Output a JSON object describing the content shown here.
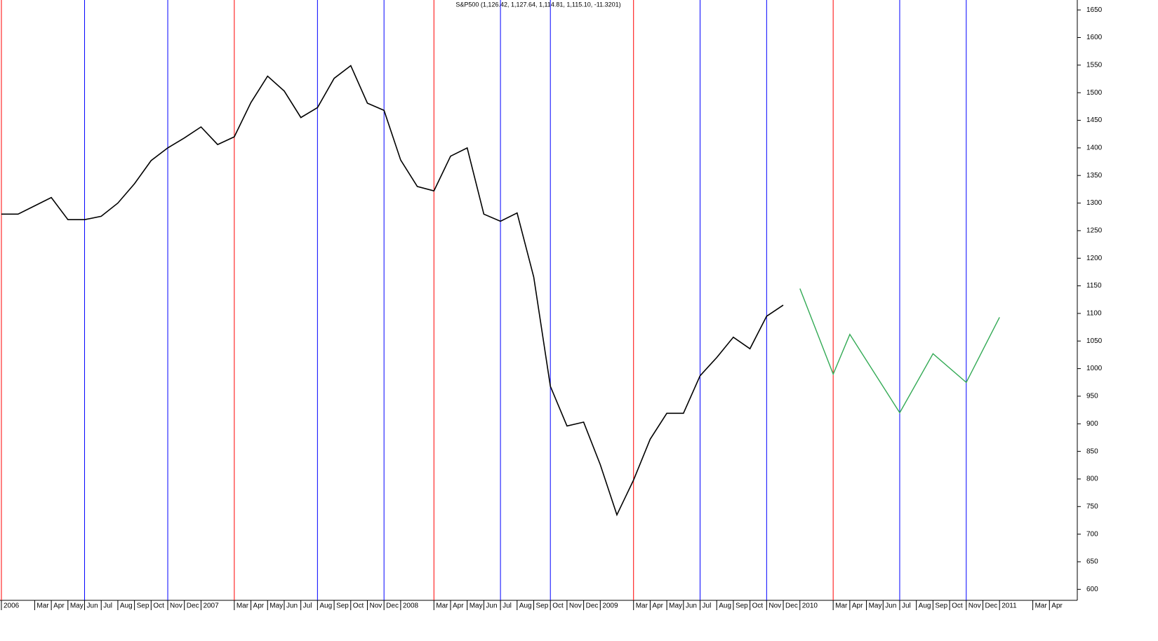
{
  "chart_data": {
    "type": "line",
    "title": "S&P500 (1,126.42, 1,127.64, 1,114.81, 1,115.10, -11.3201)",
    "xlim": [
      "2006-01",
      "2011-05"
    ],
    "ylim": [
      575,
      1668
    ],
    "yticks": [
      600,
      650,
      700,
      750,
      800,
      850,
      900,
      950,
      1000,
      1050,
      1100,
      1150,
      1200,
      1250,
      1300,
      1350,
      1400,
      1450,
      1500,
      1550,
      1600,
      1650
    ],
    "xticks": [
      {
        "value": "2006-01",
        "label": "2006"
      },
      {
        "value": "2006-03",
        "label": "Mar"
      },
      {
        "value": "2006-04",
        "label": "Apr"
      },
      {
        "value": "2006-05",
        "label": "May"
      },
      {
        "value": "2006-06",
        "label": "Jun"
      },
      {
        "value": "2006-07",
        "label": "Jul"
      },
      {
        "value": "2006-08",
        "label": "Aug"
      },
      {
        "value": "2006-09",
        "label": "Sep"
      },
      {
        "value": "2006-10",
        "label": "Oct"
      },
      {
        "value": "2006-11",
        "label": "Nov"
      },
      {
        "value": "2006-12",
        "label": "Dec"
      },
      {
        "value": "2007-01",
        "label": "2007"
      },
      {
        "value": "2007-03",
        "label": "Mar"
      },
      {
        "value": "2007-04",
        "label": "Apr"
      },
      {
        "value": "2007-05",
        "label": "May"
      },
      {
        "value": "2007-06",
        "label": "Jun"
      },
      {
        "value": "2007-07",
        "label": "Jul"
      },
      {
        "value": "2007-08",
        "label": "Aug"
      },
      {
        "value": "2007-09",
        "label": "Sep"
      },
      {
        "value": "2007-10",
        "label": "Oct"
      },
      {
        "value": "2007-11",
        "label": "Nov"
      },
      {
        "value": "2007-12",
        "label": "Dec"
      },
      {
        "value": "2008-01",
        "label": "2008"
      },
      {
        "value": "2008-03",
        "label": "Mar"
      },
      {
        "value": "2008-04",
        "label": "Apr"
      },
      {
        "value": "2008-05",
        "label": "May"
      },
      {
        "value": "2008-06",
        "label": "Jun"
      },
      {
        "value": "2008-07",
        "label": "Jul"
      },
      {
        "value": "2008-08",
        "label": "Aug"
      },
      {
        "value": "2008-09",
        "label": "Sep"
      },
      {
        "value": "2008-10",
        "label": "Oct"
      },
      {
        "value": "2008-11",
        "label": "Nov"
      },
      {
        "value": "2008-12",
        "label": "Dec"
      },
      {
        "value": "2009-01",
        "label": "2009"
      },
      {
        "value": "2009-03",
        "label": "Mar"
      },
      {
        "value": "2009-04",
        "label": "Apr"
      },
      {
        "value": "2009-05",
        "label": "May"
      },
      {
        "value": "2009-06",
        "label": "Jun"
      },
      {
        "value": "2009-07",
        "label": "Jul"
      },
      {
        "value": "2009-08",
        "label": "Aug"
      },
      {
        "value": "2009-09",
        "label": "Sep"
      },
      {
        "value": "2009-10",
        "label": "Oct"
      },
      {
        "value": "2009-11",
        "label": "Nov"
      },
      {
        "value": "2009-12",
        "label": "Dec"
      },
      {
        "value": "2010-01",
        "label": "2010"
      },
      {
        "value": "2010-03",
        "label": "Mar"
      },
      {
        "value": "2010-04",
        "label": "Apr"
      },
      {
        "value": "2010-05",
        "label": "May"
      },
      {
        "value": "2010-06",
        "label": "Jun"
      },
      {
        "value": "2010-07",
        "label": "Jul"
      },
      {
        "value": "2010-08",
        "label": "Aug"
      },
      {
        "value": "2010-09",
        "label": "Sep"
      },
      {
        "value": "2010-10",
        "label": "Oct"
      },
      {
        "value": "2010-11",
        "label": "Nov"
      },
      {
        "value": "2010-12",
        "label": "Dec"
      },
      {
        "value": "2011-01",
        "label": "2011"
      },
      {
        "value": "2011-03",
        "label": "Mar"
      },
      {
        "value": "2011-04",
        "label": "Apr"
      }
    ],
    "series": [
      {
        "color": "#000000",
        "x": [
          "2006-01",
          "2006-02",
          "2006-03",
          "2006-04",
          "2006-05",
          "2006-06",
          "2006-07",
          "2006-08",
          "2006-09",
          "2006-10",
          "2006-11",
          "2006-12",
          "2007-01",
          "2007-02",
          "2007-03",
          "2007-04",
          "2007-05",
          "2007-06",
          "2007-07",
          "2007-08",
          "2007-09",
          "2007-10",
          "2007-11",
          "2007-12",
          "2008-01",
          "2008-02",
          "2008-03",
          "2008-04",
          "2008-05",
          "2008-06",
          "2008-07",
          "2008-08",
          "2008-09",
          "2008-10",
          "2008-11",
          "2008-12",
          "2009-01",
          "2009-02",
          "2009-03",
          "2009-04",
          "2009-05",
          "2009-06",
          "2009-07",
          "2009-08",
          "2009-09",
          "2009-10",
          "2009-11",
          "2009-12"
        ],
        "values": [
          1280,
          1280,
          1295,
          1310,
          1270,
          1270,
          1276,
          1300,
          1335,
          1377,
          1400,
          1418,
          1438,
          1406,
          1420,
          1482,
          1530,
          1503,
          1455,
          1473,
          1526,
          1549,
          1481,
          1468,
          1378,
          1330,
          1322,
          1385,
          1400,
          1280,
          1267,
          1282,
          1166,
          968,
          896,
          903,
          826,
          735,
          798,
          872,
          919,
          919,
          987,
          1020,
          1057,
          1036,
          1095,
          1115
        ]
      },
      {
        "color": "#33aa55",
        "x": [
          "2010-01",
          "2010-03",
          "2010-04",
          "2010-07",
          "2010-09",
          "2010-11",
          "2011-01"
        ],
        "values": [
          1145,
          990,
          1062,
          920,
          1027,
          975,
          1093
        ]
      }
    ],
    "vlines": [
      {
        "x": "2006-01",
        "color": "#ff0000"
      },
      {
        "x": "2006-06",
        "color": "#0000ff"
      },
      {
        "x": "2006-11",
        "color": "#0000ff"
      },
      {
        "x": "2007-03",
        "color": "#ff0000"
      },
      {
        "x": "2007-08",
        "color": "#0000ff"
      },
      {
        "x": "2007-12",
        "color": "#0000ff"
      },
      {
        "x": "2008-03",
        "color": "#ff0000"
      },
      {
        "x": "2008-07",
        "color": "#0000ff"
      },
      {
        "x": "2008-10",
        "color": "#0000ff"
      },
      {
        "x": "2009-03",
        "color": "#ff0000"
      },
      {
        "x": "2009-07",
        "color": "#0000ff"
      },
      {
        "x": "2009-11",
        "color": "#0000ff"
      },
      {
        "x": "2010-03",
        "color": "#ff0000"
      },
      {
        "x": "2010-07",
        "color": "#0000ff"
      },
      {
        "x": "2010-11",
        "color": "#0000ff"
      }
    ]
  }
}
